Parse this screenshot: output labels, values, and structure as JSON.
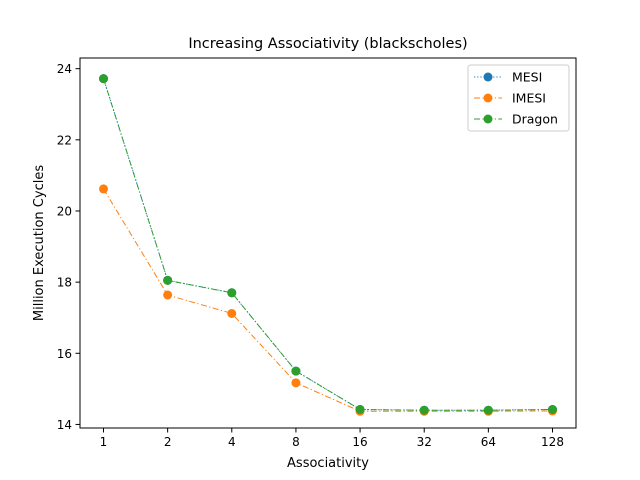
{
  "chart_data": {
    "type": "line",
    "title": "Increasing Associativity (blackscholes)",
    "xlabel": "Associativity",
    "ylabel": "Million Execution Cycles",
    "x_scale": "log2",
    "categories": [
      "1",
      "2",
      "4",
      "8",
      "16",
      "32",
      "64",
      "128"
    ],
    "x": [
      1,
      2,
      4,
      8,
      16,
      32,
      64,
      128
    ],
    "ylim": [
      13.9,
      24.3
    ],
    "yticks": [
      "14",
      "16",
      "18",
      "20",
      "22",
      "24"
    ],
    "grid": false,
    "legend_position": "top-right",
    "series": [
      {
        "name": "MESI",
        "color": "#1f77b4",
        "linestyle": "dotted",
        "values": [
          23.72,
          18.05,
          17.7,
          15.5,
          14.42,
          14.4,
          14.4,
          14.42
        ]
      },
      {
        "name": "IMESI",
        "color": "#ff7f0e",
        "linestyle": "dashdot",
        "values": [
          20.62,
          17.64,
          17.12,
          15.17,
          14.37,
          14.37,
          14.37,
          14.38
        ]
      },
      {
        "name": "Dragon",
        "color": "#2ca02c",
        "linestyle": "dashdot",
        "values": [
          23.72,
          18.05,
          17.7,
          15.5,
          14.42,
          14.4,
          14.4,
          14.42
        ]
      }
    ]
  }
}
